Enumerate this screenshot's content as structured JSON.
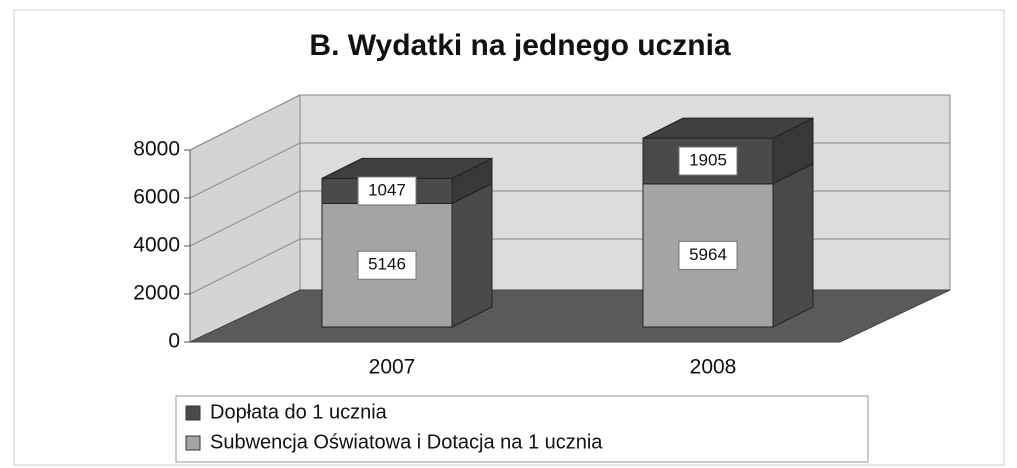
{
  "chart_data": {
    "type": "bar3d_stacked",
    "title": "B. Wydatki na jednego ucznia",
    "categories": [
      "2007",
      "2008"
    ],
    "series": [
      {
        "name": "Subwencja Oświatowa i Dotacja na 1 ucznia",
        "color": "#a4a4a4",
        "values": [
          5146,
          5964
        ]
      },
      {
        "name": "Dopłata do 1 ucznia",
        "color": "#4a4a4a",
        "values": [
          1047,
          1905
        ]
      }
    ],
    "ylim": [
      0,
      8000
    ],
    "yticks": [
      0,
      2000,
      4000,
      6000,
      8000
    ],
    "grid": true
  }
}
